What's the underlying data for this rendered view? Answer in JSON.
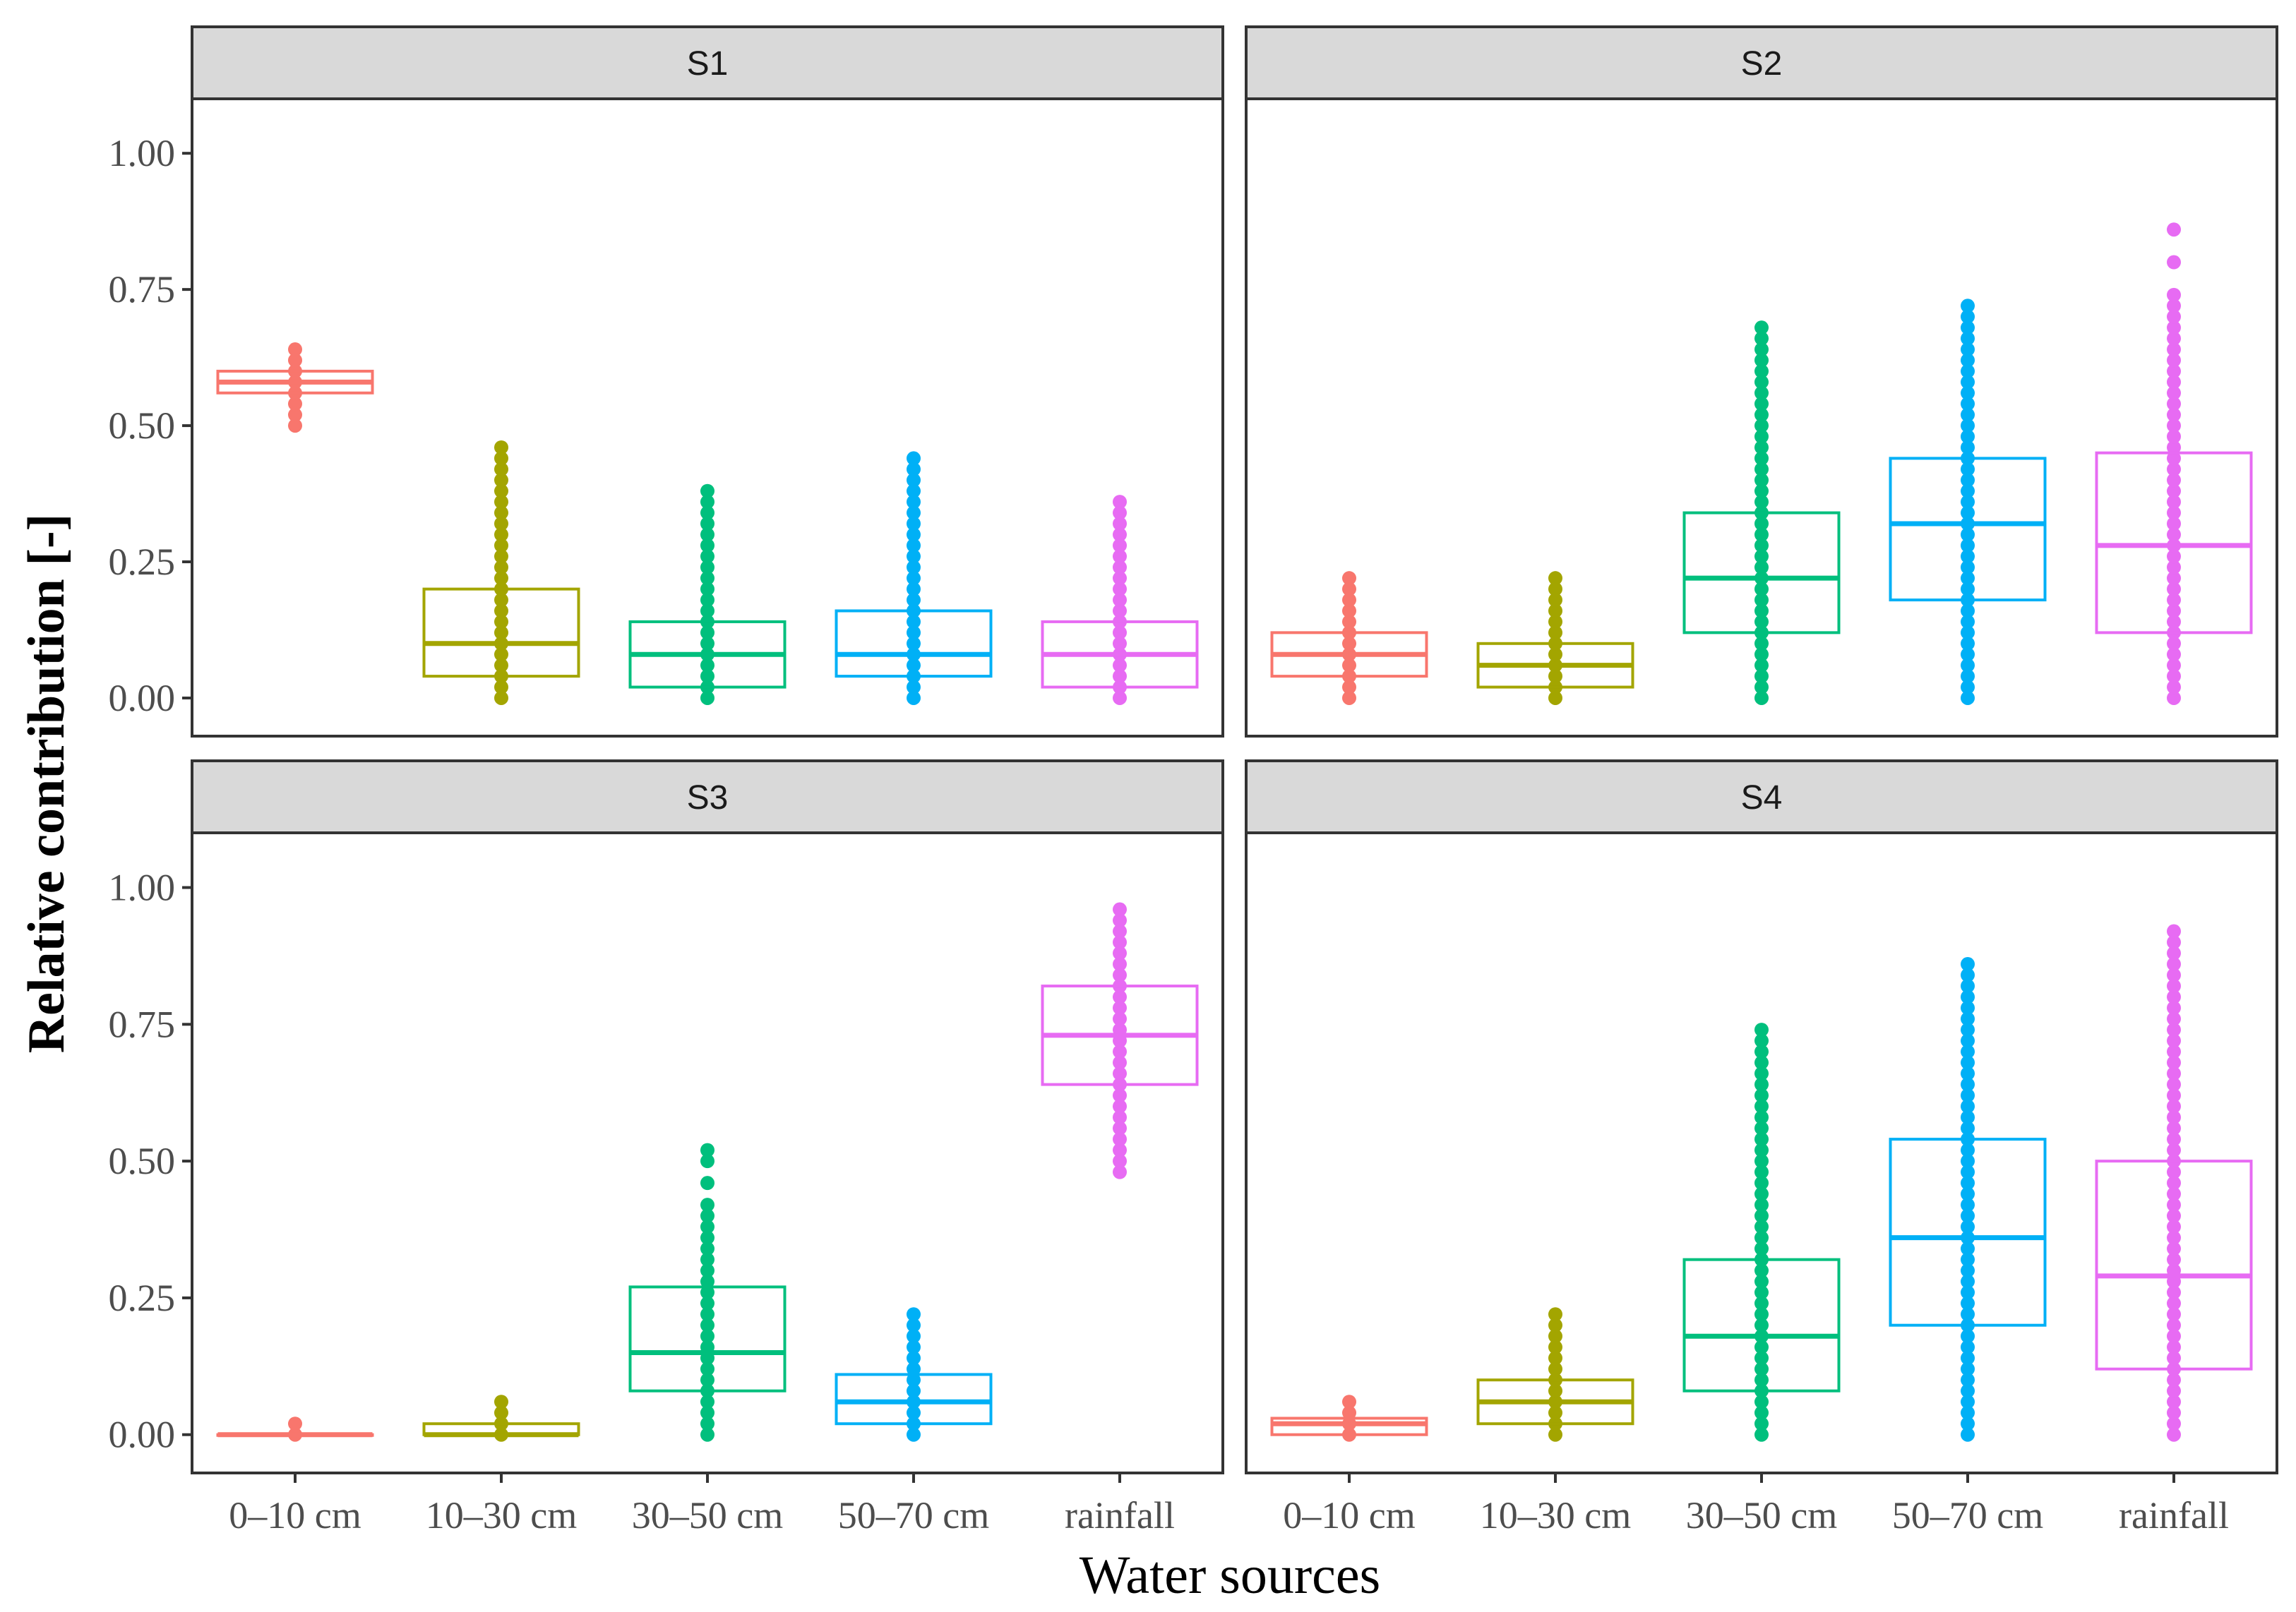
{
  "chart_data": {
    "type": "box",
    "ylabel": "Relative contribution [-]",
    "xlabel": "Water sources",
    "ylim": [
      -0.07,
      1.1
    ],
    "yticks": [
      0.0,
      0.25,
      0.5,
      0.75,
      1.0
    ],
    "ytick_labels": [
      "0.00",
      "0.25",
      "0.50",
      "0.75",
      "1.00"
    ],
    "categories": [
      "0–10 cm",
      "10–30 cm",
      "30–50 cm",
      "50–70 cm",
      "rainfall"
    ],
    "colors": {
      "0–10 cm": "#F8766D",
      "10–30 cm": "#A3A500",
      "30–50 cm": "#00BF7D",
      "50–70 cm": "#00B0F6",
      "rainfall": "#E76BF3"
    },
    "panels": [
      {
        "label": "S1",
        "boxes": [
          {
            "source": "0–10 cm",
            "q1": 0.56,
            "median": 0.58,
            "q3": 0.6,
            "pmin": 0.5,
            "pmax": 0.64
          },
          {
            "source": "10–30 cm",
            "q1": 0.04,
            "median": 0.1,
            "q3": 0.2,
            "pmin": 0.0,
            "pmax": 0.46
          },
          {
            "source": "30–50 cm",
            "q1": 0.02,
            "median": 0.08,
            "q3": 0.14,
            "pmin": 0.0,
            "pmax": 0.38
          },
          {
            "source": "50–70 cm",
            "q1": 0.04,
            "median": 0.08,
            "q3": 0.16,
            "pmin": 0.0,
            "pmax": 0.44
          },
          {
            "source": "rainfall",
            "q1": 0.02,
            "median": 0.08,
            "q3": 0.14,
            "pmin": 0.0,
            "pmax": 0.36
          }
        ]
      },
      {
        "label": "S2",
        "boxes": [
          {
            "source": "0–10 cm",
            "q1": 0.04,
            "median": 0.08,
            "q3": 0.12,
            "pmin": 0.0,
            "pmax": 0.22
          },
          {
            "source": "10–30 cm",
            "q1": 0.02,
            "median": 0.06,
            "q3": 0.1,
            "pmin": 0.0,
            "pmax": 0.22
          },
          {
            "source": "30–50 cm",
            "q1": 0.12,
            "median": 0.22,
            "q3": 0.34,
            "pmin": 0.0,
            "pmax": 0.68
          },
          {
            "source": "50–70 cm",
            "q1": 0.18,
            "median": 0.32,
            "q3": 0.44,
            "pmin": 0.0,
            "pmax": 0.72
          },
          {
            "source": "rainfall",
            "q1": 0.12,
            "median": 0.28,
            "q3": 0.45,
            "pmin": 0.0,
            "pmax": 0.74,
            "outliers": [
              0.8,
              0.86
            ]
          }
        ]
      },
      {
        "label": "S3",
        "boxes": [
          {
            "source": "0–10 cm",
            "q1": 0.0,
            "median": 0.0,
            "q3": 0.0,
            "pmin": 0.0,
            "pmax": 0.02
          },
          {
            "source": "10–30 cm",
            "q1": 0.0,
            "median": 0.0,
            "q3": 0.02,
            "pmin": 0.0,
            "pmax": 0.06
          },
          {
            "source": "30–50 cm",
            "q1": 0.08,
            "median": 0.15,
            "q3": 0.27,
            "pmin": 0.0,
            "pmax": 0.42,
            "outliers": [
              0.46,
              0.5,
              0.52
            ]
          },
          {
            "source": "50–70 cm",
            "q1": 0.02,
            "median": 0.06,
            "q3": 0.11,
            "pmin": 0.0,
            "pmax": 0.22
          },
          {
            "source": "rainfall",
            "q1": 0.64,
            "median": 0.73,
            "q3": 0.82,
            "pmin": 0.48,
            "pmax": 0.96
          }
        ]
      },
      {
        "label": "S4",
        "boxes": [
          {
            "source": "0–10 cm",
            "q1": 0.0,
            "median": 0.02,
            "q3": 0.03,
            "pmin": 0.0,
            "pmax": 0.06
          },
          {
            "source": "10–30 cm",
            "q1": 0.02,
            "median": 0.06,
            "q3": 0.1,
            "pmin": 0.0,
            "pmax": 0.22
          },
          {
            "source": "30–50 cm",
            "q1": 0.08,
            "median": 0.18,
            "q3": 0.32,
            "pmin": 0.0,
            "pmax": 0.74
          },
          {
            "source": "50–70 cm",
            "q1": 0.2,
            "median": 0.36,
            "q3": 0.54,
            "pmin": 0.0,
            "pmax": 0.86
          },
          {
            "source": "rainfall",
            "q1": 0.12,
            "median": 0.29,
            "q3": 0.5,
            "pmin": 0.0,
            "pmax": 0.92
          }
        ]
      }
    ]
  }
}
